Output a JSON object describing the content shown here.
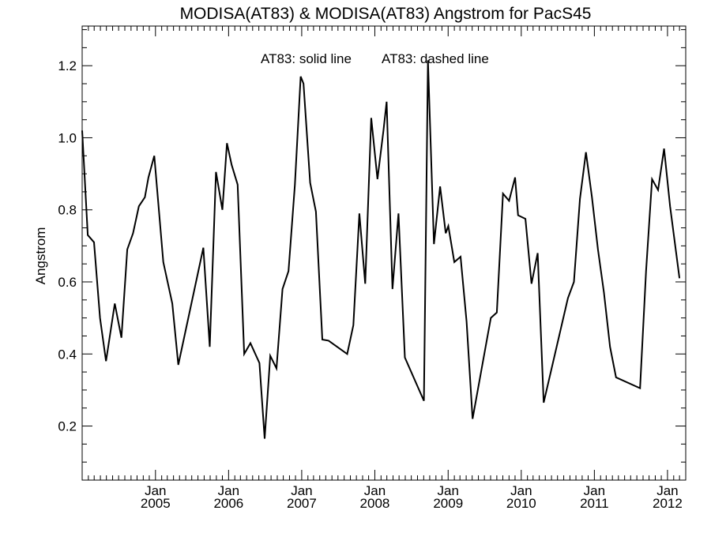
{
  "chart_data": {
    "type": "line",
    "title": "MODISA(AT83) & MODISA(AT83)  Angstrom for PacS45",
    "annotations": [
      "AT83: solid line",
      "AT83: dashed line"
    ],
    "xlabel": "",
    "ylabel": "Angstrom",
    "xlim": [
      "2004-01-01",
      "2012-04-01"
    ],
    "ylim": [
      0.05,
      1.31
    ],
    "grid": false,
    "yticks": [
      0.2,
      0.4,
      0.6,
      0.8,
      1.0,
      1.2
    ],
    "ytick_labels": [
      "0.2",
      "0.4",
      "0.6",
      "0.8",
      "1.0",
      "1.2"
    ],
    "xticks": [
      {
        "date": "2005-01-01",
        "month": "Jan",
        "year": "2005"
      },
      {
        "date": "2006-01-01",
        "month": "Jan",
        "year": "2006"
      },
      {
        "date": "2007-01-01",
        "month": "Jan",
        "year": "2007"
      },
      {
        "date": "2008-01-01",
        "month": "Jan",
        "year": "2008"
      },
      {
        "date": "2009-01-01",
        "month": "Jan",
        "year": "2009"
      },
      {
        "date": "2010-01-01",
        "month": "Jan",
        "year": "2010"
      },
      {
        "date": "2011-01-01",
        "month": "Jan",
        "year": "2011"
      },
      {
        "date": "2012-01-01",
        "month": "Jan",
        "year": "2012"
      }
    ],
    "series": [
      {
        "line_style": "solid",
        "color": "#000000",
        "points": [
          [
            "2004-01-01",
            1.02
          ],
          [
            "2004-01-29",
            0.73
          ],
          [
            "2004-02-29",
            0.71
          ],
          [
            "2004-03-30",
            0.5
          ],
          [
            "2004-04-29",
            0.38
          ],
          [
            "2004-06-12",
            0.54
          ],
          [
            "2004-07-15",
            0.445
          ],
          [
            "2004-08-13",
            0.69
          ],
          [
            "2004-09-11",
            0.735
          ],
          [
            "2004-10-10",
            0.81
          ],
          [
            "2004-11-09",
            0.835
          ],
          [
            "2004-11-27",
            0.89
          ],
          [
            "2004-12-26",
            0.95
          ],
          [
            "2005-02-09",
            0.655
          ],
          [
            "2005-03-26",
            0.54
          ],
          [
            "2005-04-25",
            0.37
          ],
          [
            "2005-08-28",
            0.695
          ],
          [
            "2005-09-29",
            0.42
          ],
          [
            "2005-10-30",
            0.905
          ],
          [
            "2005-12-01",
            0.8
          ],
          [
            "2005-12-24",
            0.985
          ],
          [
            "2006-01-16",
            0.925
          ],
          [
            "2006-02-15",
            0.87
          ],
          [
            "2006-03-20",
            0.4
          ],
          [
            "2006-04-20",
            0.43
          ],
          [
            "2006-06-04",
            0.375
          ],
          [
            "2006-06-30",
            0.165
          ],
          [
            "2006-07-28",
            0.395
          ],
          [
            "2006-08-28",
            0.36
          ],
          [
            "2006-09-27",
            0.58
          ],
          [
            "2006-10-27",
            0.63
          ],
          [
            "2006-11-28",
            0.87
          ],
          [
            "2006-12-27",
            1.17
          ],
          [
            "2007-01-10",
            1.15
          ],
          [
            "2007-02-12",
            0.875
          ],
          [
            "2007-03-13",
            0.795
          ],
          [
            "2007-04-14",
            0.44
          ],
          [
            "2007-05-15",
            0.437
          ],
          [
            "2007-08-16",
            0.4
          ],
          [
            "2007-09-16",
            0.48
          ],
          [
            "2007-10-16",
            0.79
          ],
          [
            "2007-11-14",
            0.595
          ],
          [
            "2007-12-14",
            1.055
          ],
          [
            "2008-01-14",
            0.885
          ],
          [
            "2008-02-13",
            1.02
          ],
          [
            "2008-02-29",
            1.1
          ],
          [
            "2008-03-29",
            0.58
          ],
          [
            "2008-04-28",
            0.79
          ],
          [
            "2008-05-30",
            0.39
          ],
          [
            "2008-09-02",
            0.27
          ],
          [
            "2008-09-22",
            1.215
          ],
          [
            "2008-10-22",
            0.705
          ],
          [
            "2008-11-22",
            0.865
          ],
          [
            "2008-12-20",
            0.735
          ],
          [
            "2009-01-02",
            0.755
          ],
          [
            "2009-02-01",
            0.655
          ],
          [
            "2009-03-04",
            0.67
          ],
          [
            "2009-04-03",
            0.49
          ],
          [
            "2009-05-03",
            0.22
          ],
          [
            "2009-08-02",
            0.5
          ],
          [
            "2009-09-01",
            0.515
          ],
          [
            "2009-10-02",
            0.845
          ],
          [
            "2009-11-01",
            0.825
          ],
          [
            "2009-12-01",
            0.89
          ],
          [
            "2009-12-16",
            0.785
          ],
          [
            "2010-01-22",
            0.775
          ],
          [
            "2010-02-21",
            0.595
          ],
          [
            "2010-03-24",
            0.68
          ],
          [
            "2010-04-23",
            0.265
          ],
          [
            "2010-08-22",
            0.555
          ],
          [
            "2010-09-21",
            0.6
          ],
          [
            "2010-10-21",
            0.83
          ],
          [
            "2010-11-20",
            0.96
          ],
          [
            "2010-12-20",
            0.835
          ],
          [
            "2011-01-19",
            0.69
          ],
          [
            "2011-02-18",
            0.57
          ],
          [
            "2011-03-20",
            0.42
          ],
          [
            "2011-04-19",
            0.335
          ],
          [
            "2011-08-17",
            0.305
          ],
          [
            "2011-09-16",
            0.63
          ],
          [
            "2011-10-16",
            0.885
          ],
          [
            "2011-11-15",
            0.855
          ],
          [
            "2011-12-15",
            0.97
          ],
          [
            "2012-01-14",
            0.81
          ],
          [
            "2012-03-01",
            0.61
          ]
        ]
      }
    ]
  }
}
